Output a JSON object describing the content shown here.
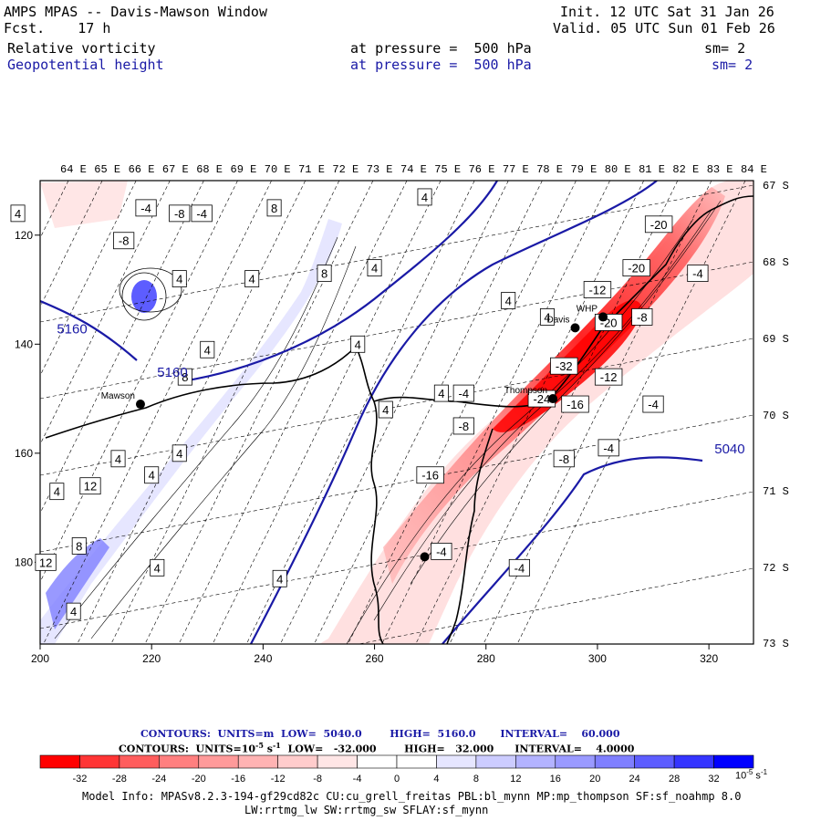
{
  "header": {
    "title": "AMPS MPAS -- Davis-Mawson Window",
    "fcst_label": "Fcst.",
    "fcst_value": "17 h",
    "init": "Init. 12 UTC Sat 31 Jan 26",
    "valid": "Valid. 05 UTC Sun 01 Feb 26",
    "field1_name": "Relative vorticity",
    "field1_level": "at pressure =  500 hPa",
    "field1_sm": "sm= 2",
    "field2_name": "Geopotential height",
    "field2_level": "at pressure =  500 hPa",
    "field2_sm": "sm= 2"
  },
  "map": {
    "lon_labels": [
      "64 E",
      "65 E",
      "66 E",
      "67 E",
      "68 E",
      "69 E",
      "70 E",
      "71 E",
      "72 E",
      "73 E",
      "74 E",
      "75 E",
      "76 E",
      "77 E",
      "78 E",
      "79 E",
      "80 E",
      "81 E",
      "82 E",
      "83 E",
      "84 E"
    ],
    "lat_labels": [
      "67 S",
      "68 S",
      "69 S",
      "70 S",
      "71 S",
      "72 S",
      "73 S"
    ],
    "x_ticks": [
      "200",
      "220",
      "240",
      "260",
      "280",
      "300",
      "320"
    ],
    "y_ticks": [
      "120",
      "140",
      "160",
      "180"
    ],
    "stations": [
      {
        "name": "Davis",
        "x": 296,
        "y": 137
      },
      {
        "name": "Mawson",
        "x": 218,
        "y": 151
      },
      {
        "name": "Thompson",
        "x": 292,
        "y": 150
      },
      {
        "name": "WHP",
        "x": 301,
        "y": 135
      },
      {
        "name": "",
        "x": 269,
        "y": 179
      }
    ],
    "contour_labels": [
      {
        "text": "4",
        "x": 196,
        "y": 116
      },
      {
        "text": "-4",
        "x": 219,
        "y": 115
      },
      {
        "text": "-8",
        "x": 215,
        "y": 121
      },
      {
        "text": "-8",
        "x": 225,
        "y": 116
      },
      {
        "text": "-4",
        "x": 229,
        "y": 116
      },
      {
        "text": "8",
        "x": 242,
        "y": 115
      },
      {
        "text": "4",
        "x": 269,
        "y": 113
      },
      {
        "text": "4",
        "x": 225,
        "y": 128
      },
      {
        "text": "4",
        "x": 238,
        "y": 128
      },
      {
        "text": "8",
        "x": 251,
        "y": 127
      },
      {
        "text": "4",
        "x": 260,
        "y": 126
      },
      {
        "text": "4",
        "x": 284,
        "y": 132
      },
      {
        "text": "4",
        "x": 291,
        "y": 135
      },
      {
        "text": "4",
        "x": 230,
        "y": 141
      },
      {
        "text": "8",
        "x": 226,
        "y": 146
      },
      {
        "text": "4",
        "x": 257,
        "y": 140
      },
      {
        "text": "4",
        "x": 272,
        "y": 149
      },
      {
        "text": "4",
        "x": 262,
        "y": 152
      },
      {
        "text": "-4",
        "x": 276,
        "y": 149
      },
      {
        "text": "-12",
        "x": 300,
        "y": 130
      },
      {
        "text": "-20",
        "x": 307,
        "y": 126
      },
      {
        "text": "-20",
        "x": 311,
        "y": 118
      },
      {
        "text": "-4",
        "x": 318,
        "y": 127
      },
      {
        "text": "-8",
        "x": 308,
        "y": 135
      },
      {
        "text": "-20",
        "x": 302,
        "y": 136
      },
      {
        "text": "-32",
        "x": 294,
        "y": 144
      },
      {
        "text": "-12",
        "x": 302,
        "y": 146
      },
      {
        "text": "-24",
        "x": 290,
        "y": 150
      },
      {
        "text": "-16",
        "x": 296,
        "y": 151
      },
      {
        "text": "-4",
        "x": 310,
        "y": 151
      },
      {
        "text": "-8",
        "x": 276,
        "y": 155
      },
      {
        "text": "-4",
        "x": 302,
        "y": 159
      },
      {
        "text": "-8",
        "x": 294,
        "y": 161
      },
      {
        "text": "-16",
        "x": 270,
        "y": 164
      },
      {
        "text": "4",
        "x": 214,
        "y": 161
      },
      {
        "text": "4",
        "x": 225,
        "y": 160
      },
      {
        "text": "4",
        "x": 220,
        "y": 164
      },
      {
        "text": "4",
        "x": 203,
        "y": 167
      },
      {
        "text": "12",
        "x": 209,
        "y": 166
      },
      {
        "text": "8",
        "x": 207,
        "y": 177
      },
      {
        "text": "4",
        "x": 221,
        "y": 181
      },
      {
        "text": "12",
        "x": 201,
        "y": 180
      },
      {
        "text": "4",
        "x": 243,
        "y": 183
      },
      {
        "text": "-4",
        "x": 272,
        "y": 178
      },
      {
        "text": "-4",
        "x": 286,
        "y": 181
      },
      {
        "text": "4",
        "x": 206,
        "y": 189
      }
    ],
    "height_labels": [
      {
        "text": "5160",
        "x": 203,
        "y": 138
      },
      {
        "text": "5160",
        "x": 221,
        "y": 146
      },
      {
        "text": "5040",
        "x": 321,
        "y": 160
      }
    ],
    "colors": {
      "negative": "#ff0000",
      "positive": "#0000ff",
      "height": "#1a1aa6"
    }
  },
  "colorbar": {
    "title1": "CONTOURS:  UNITS=m  LOW=  5040.0        HIGH=  5160.0       INTERVAL=    60.000",
    "title2": "CONTOURS:  UNITS=10",
    "title2_sup": "-5",
    "title2_rest": " s",
    "title2_sup2": "-1",
    "title2_tail": "  LOW=   -32.000        HIGH=   32.000      INTERVAL=    4.0000",
    "ticks": [
      "-32",
      "-28",
      "-24",
      "-20",
      "-16",
      "-12",
      "-8",
      "-4",
      "0",
      "4",
      "8",
      "12",
      "16",
      "20",
      "24",
      "28",
      "32"
    ],
    "unit": "10",
    "unit_sup": "-5",
    "unit_rest": " s",
    "unit_sup2": "-1",
    "colors": [
      "#ff0000",
      "#ff3535",
      "#ff5d5d",
      "#ff7f7f",
      "#ff9a9a",
      "#ffb3b3",
      "#ffcccc",
      "#ffe6e6",
      "#ffffff",
      "#ffffff",
      "#e6e6ff",
      "#ccccff",
      "#b3b3ff",
      "#9a9aff",
      "#7f7fff",
      "#5d5dff",
      "#3535ff",
      "#0000ff"
    ]
  },
  "footer": {
    "line1": "Model Info: MPASv8.2.3-194-gf29cd82c CU:cu_grell_freitas PBL:bl_mynn MP:mp_thompson SF:sf_noahmp 8.0",
    "line2": "LW:rrtmg_lw SW:rrtmg_sw SFLAY:sf_mynn"
  }
}
